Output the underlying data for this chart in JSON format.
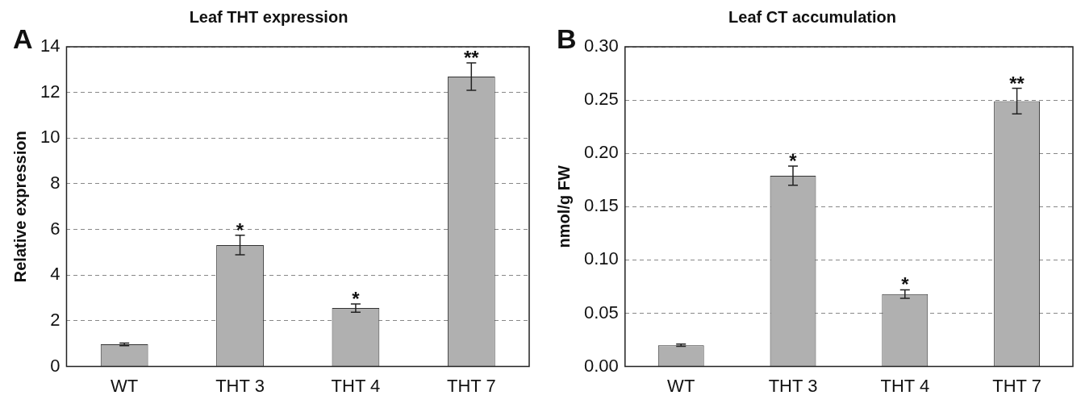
{
  "chart_data": [
    {
      "type": "bar",
      "title": "Leaf THT expression",
      "ylabel": "Relative expression",
      "categories": [
        "WT",
        "THT 3",
        "THT 4",
        "THT 7"
      ],
      "values": [
        0.97,
        5.32,
        2.56,
        12.69
      ],
      "errors": [
        0.06,
        0.43,
        0.18,
        0.6
      ],
      "color": "#b0b0b0",
      "ylim": [
        0,
        14
      ],
      "yticks": [
        0,
        2,
        4,
        6,
        8,
        10,
        12,
        14
      ],
      "grid": "y",
      "annotations": [
        "A",
        {
          "text": "*",
          "x": "THT 3",
          "y": 5.75
        },
        {
          "text": "*",
          "x": "THT 4",
          "y": 2.74
        },
        {
          "text": "**",
          "x": "THT 7",
          "y": 13.29
        }
      ]
    },
    {
      "type": "bar",
      "title": "Leaf CT accumulation",
      "ylabel": "nmol/g FW",
      "categories": [
        "WT",
        "THT 3",
        "THT 4",
        "THT 7"
      ],
      "values": [
        0.02,
        0.179,
        0.068,
        0.249
      ],
      "errors": [
        0.001,
        0.009,
        0.004,
        0.012
      ],
      "color": "#b0b0b0",
      "ylim": [
        0,
        0.3
      ],
      "yticks": [
        {
          "value": 0,
          "label": "0.00"
        },
        {
          "value": 0.05,
          "label": "0.05"
        },
        {
          "value": 0.1,
          "label": "0.10"
        },
        {
          "value": 0.15,
          "label": "0.15"
        },
        {
          "value": 0.2,
          "label": "0.20"
        },
        {
          "value": 0.25,
          "label": "0.25"
        },
        {
          "value": 0.3,
          "label": "0.30"
        }
      ],
      "grid": "y",
      "annotations": [
        "B",
        {
          "text": "*",
          "x": "THT 3",
          "y": 0.188
        },
        {
          "text": "*",
          "x": "THT 4",
          "y": 0.072
        },
        {
          "text": "**",
          "x": "THT 7",
          "y": 0.261
        }
      ]
    }
  ]
}
